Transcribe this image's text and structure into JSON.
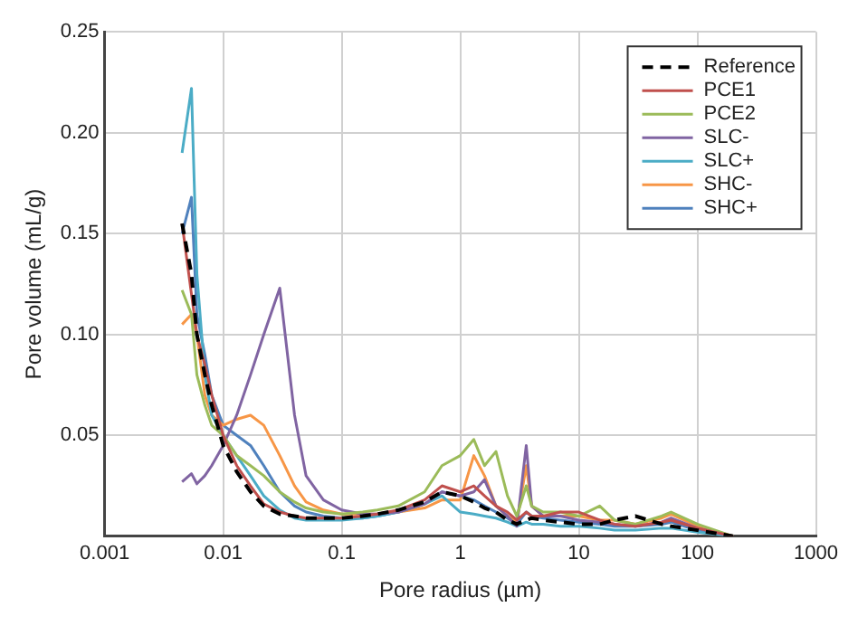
{
  "chart_data": {
    "type": "line",
    "xlabel": "Pore radius (µm)",
    "ylabel": "Pore volume (mL/g)",
    "log": "x",
    "grid": true,
    "legend": "top right",
    "marker": "none",
    "xlim": [
      0.001,
      1000
    ],
    "xticks": [
      0.001,
      0.01,
      0.1,
      1,
      10,
      100,
      1000
    ],
    "ylim": [
      0,
      0.25
    ],
    "yticks": [
      {
        "value": 0,
        "label": null
      },
      0.05,
      {
        "value": 0.1,
        "label": "0.10"
      },
      0.15,
      {
        "value": 0.2,
        "label": "0.20"
      },
      0.25
    ],
    "x": [
      0.0045,
      0.0054,
      0.006,
      0.007,
      0.008,
      0.01,
      0.013,
      0.017,
      0.022,
      0.03,
      0.04,
      0.05,
      0.07,
      0.1,
      0.15,
      0.2,
      0.3,
      0.5,
      0.7,
      1,
      1.3,
      1.6,
      2,
      2.5,
      3,
      3.6,
      4,
      5,
      7,
      10,
      15,
      20,
      30,
      50,
      60,
      100,
      200
    ],
    "series": [
      {
        "name": "Reference",
        "color": "#000000",
        "line_style": "dashed",
        "values": [
          0.155,
          0.13,
          0.1,
          0.08,
          0.065,
          0.045,
          0.032,
          0.022,
          0.015,
          0.011,
          0.01,
          0.009,
          0.009,
          0.009,
          0.01,
          0.011,
          0.013,
          0.017,
          0.022,
          0.02,
          0.017,
          0.014,
          0.012,
          0.008,
          0.006,
          0.008,
          0.009,
          0.008,
          0.007,
          0.006,
          0.006,
          0.008,
          0.01,
          0.006,
          0.005,
          0.003,
          0
        ]
      },
      {
        "name": "PCE1",
        "color": "#c0504d",
        "values": [
          0.155,
          0.12,
          0.1,
          0.085,
          0.07,
          0.05,
          0.035,
          0.025,
          0.016,
          0.012,
          0.01,
          0.009,
          0.009,
          0.009,
          0.01,
          0.011,
          0.013,
          0.018,
          0.025,
          0.022,
          0.025,
          0.02,
          0.015,
          0.012,
          0.008,
          0.012,
          0.01,
          0.01,
          0.012,
          0.012,
          0.008,
          0.006,
          0.005,
          0.007,
          0.008,
          0.004,
          0
        ]
      },
      {
        "name": "PCE2",
        "color": "#9bbb59",
        "values": [
          0.122,
          0.11,
          0.08,
          0.065,
          0.055,
          0.05,
          0.04,
          0.035,
          0.03,
          0.022,
          0.017,
          0.014,
          0.012,
          0.011,
          0.012,
          0.013,
          0.015,
          0.022,
          0.035,
          0.04,
          0.048,
          0.035,
          0.042,
          0.02,
          0.01,
          0.025,
          0.015,
          0.012,
          0.012,
          0.01,
          0.015,
          0.008,
          0.006,
          0.01,
          0.012,
          0.006,
          0
        ]
      },
      {
        "name": "SLC-",
        "color": "#8064a2",
        "values": [
          0.027,
          0.031,
          0.026,
          0.03,
          0.035,
          0.045,
          0.06,
          0.08,
          0.1,
          0.123,
          0.06,
          0.03,
          0.018,
          0.013,
          0.011,
          0.011,
          0.012,
          0.016,
          0.022,
          0.02,
          0.022,
          0.028,
          0.015,
          0.01,
          0.005,
          0.045,
          0.015,
          0.01,
          0.01,
          0.008,
          0.007,
          0.006,
          0.005,
          0.007,
          0.009,
          0.004,
          0
        ]
      },
      {
        "name": "SLC+",
        "color": "#4bacc6",
        "values": [
          0.19,
          0.222,
          0.13,
          0.08,
          0.06,
          0.05,
          0.04,
          0.03,
          0.02,
          0.013,
          0.009,
          0.008,
          0.008,
          0.008,
          0.009,
          0.01,
          0.012,
          0.016,
          0.02,
          0.012,
          0.011,
          0.01,
          0.009,
          0.007,
          0.005,
          0.007,
          0.006,
          0.006,
          0.005,
          0.005,
          0.004,
          0.003,
          0.003,
          0.004,
          0.004,
          0.002,
          0
        ]
      },
      {
        "name": "SHC-",
        "color": "#f79646",
        "values": [
          0.105,
          0.11,
          0.1,
          0.07,
          0.06,
          0.055,
          0.058,
          0.06,
          0.055,
          0.04,
          0.025,
          0.017,
          0.013,
          0.011,
          0.011,
          0.011,
          0.012,
          0.014,
          0.018,
          0.018,
          0.04,
          0.03,
          0.015,
          0.01,
          0.007,
          0.035,
          0.015,
          0.01,
          0.01,
          0.01,
          0.008,
          0.008,
          0.006,
          0.009,
          0.011,
          0.005,
          0
        ]
      },
      {
        "name": "SHC+",
        "color": "#4f81bd",
        "values": [
          0.15,
          0.168,
          0.11,
          0.09,
          0.07,
          0.055,
          0.05,
          0.045,
          0.035,
          0.022,
          0.015,
          0.012,
          0.01,
          0.009,
          0.009,
          0.01,
          0.012,
          0.016,
          0.022,
          0.02,
          0.018,
          0.015,
          0.012,
          0.009,
          0.006,
          0.012,
          0.01,
          0.009,
          0.008,
          0.007,
          0.006,
          0.005,
          0.005,
          0.006,
          0.007,
          0.003,
          0
        ]
      }
    ]
  }
}
